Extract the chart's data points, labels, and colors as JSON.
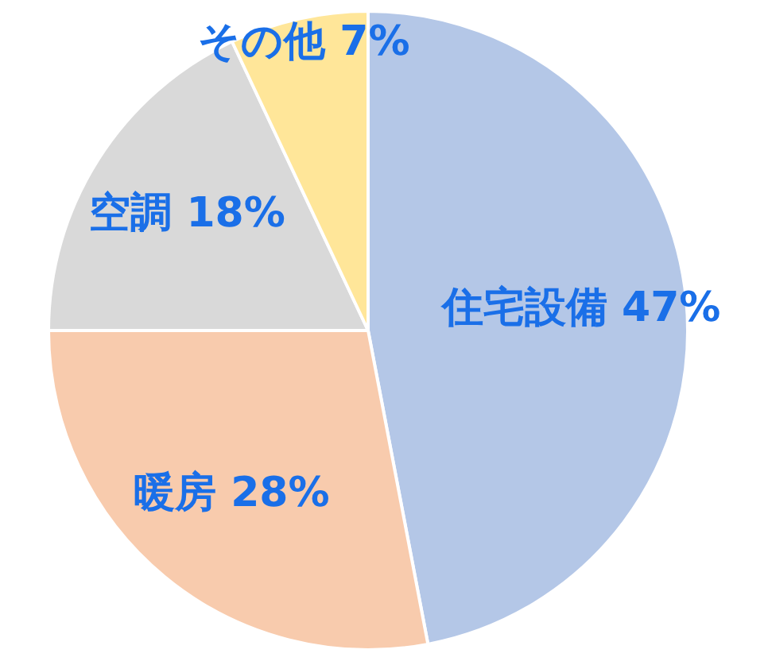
{
  "chart_data": {
    "type": "pie",
    "categories": [
      "住宅設備",
      "暖房",
      "空調",
      "その他"
    ],
    "values": [
      47,
      28,
      18,
      7
    ],
    "colors": [
      "#b4c7e7",
      "#f8cbad",
      "#d9d9d9",
      "#ffe699"
    ],
    "value_labels": [
      "47%",
      "28%",
      "18%",
      "7%"
    ]
  }
}
